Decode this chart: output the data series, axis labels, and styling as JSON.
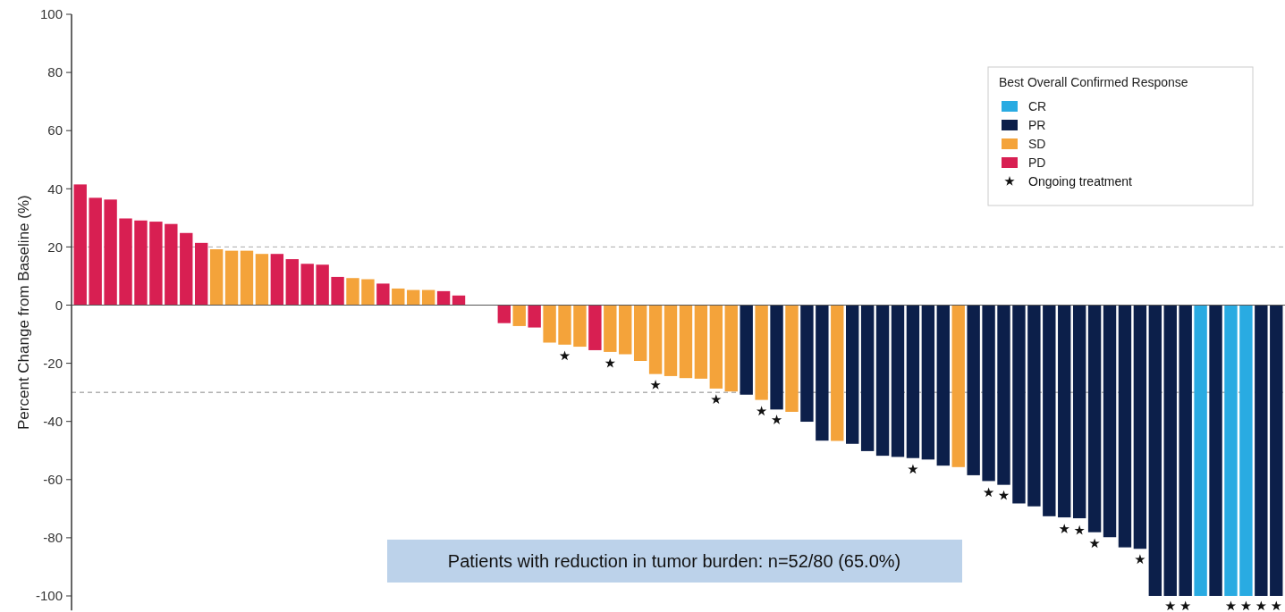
{
  "chart_data": {
    "type": "bar",
    "ylabel": "Percent Change from Baseline (%)",
    "legend_title": "Best Overall Confirmed Response",
    "legend": "top right",
    "grid": false,
    "tick_labels": "y",
    "categories": [
      null,
      null,
      null,
      null,
      null,
      null,
      null,
      null,
      null,
      null,
      null,
      null,
      null,
      null,
      null,
      null,
      null,
      null,
      null,
      null,
      null,
      null,
      null,
      null,
      null,
      null,
      null,
      null,
      null,
      null,
      null,
      null,
      null,
      null,
      null,
      null,
      null,
      null,
      null,
      null,
      null,
      null,
      null,
      null,
      null,
      null,
      null,
      null,
      null,
      null,
      null,
      null,
      null,
      null,
      null,
      null,
      null,
      null,
      null,
      null,
      null,
      null,
      null,
      null,
      null,
      null,
      null,
      null,
      null,
      null,
      null,
      null,
      null,
      null,
      null,
      null,
      null,
      null,
      null,
      null
    ],
    "ylim": [
      -105,
      100
    ],
    "yticks": [
      -100,
      -80,
      -60,
      -40,
      -20,
      0,
      20,
      40,
      60,
      80,
      100
    ],
    "series": [
      {
        "name": "CR",
        "color": "#29abe2",
        "values": [
          null,
          null,
          null,
          null,
          null,
          null,
          null,
          null,
          null,
          null,
          null,
          null,
          null,
          null,
          null,
          null,
          null,
          null,
          null,
          null,
          null,
          null,
          null,
          null,
          null,
          null,
          null,
          null,
          null,
          null,
          null,
          null,
          null,
          null,
          null,
          null,
          null,
          null,
          null,
          null,
          null,
          null,
          null,
          null,
          null,
          null,
          null,
          null,
          null,
          null,
          null,
          null,
          null,
          null,
          null,
          null,
          null,
          null,
          null,
          null,
          null,
          null,
          null,
          null,
          null,
          null,
          null,
          null,
          null,
          null,
          null,
          null,
          null,
          null,
          -100,
          null,
          -100,
          -100,
          null,
          null
        ]
      },
      {
        "name": "PR",
        "color": "#0c1f4a",
        "values": [
          null,
          null,
          null,
          null,
          null,
          null,
          null,
          null,
          null,
          null,
          null,
          null,
          null,
          null,
          null,
          null,
          null,
          null,
          null,
          null,
          null,
          null,
          null,
          null,
          null,
          null,
          null,
          null,
          null,
          null,
          null,
          null,
          null,
          null,
          null,
          null,
          null,
          null,
          null,
          null,
          null,
          null,
          null,
          null,
          -30.8,
          null,
          -35.9,
          null,
          -40.1,
          -46.6,
          null,
          -47.7,
          -50.2,
          -51.8,
          -52.2,
          -52.6,
          -53.1,
          -55.2,
          null,
          -58.5,
          -60.5,
          -61.8,
          -68.2,
          -69.2,
          -72.6,
          -73.0,
          -73.3,
          -78.1,
          -79.8,
          -83.3,
          -83.8,
          -100,
          -100,
          -100,
          null,
          -100,
          null,
          null,
          -100,
          -100
        ]
      },
      {
        "name": "SD",
        "color": "#f4a33a",
        "values": [
          null,
          null,
          null,
          null,
          null,
          null,
          null,
          null,
          null,
          19.2,
          18.7,
          18.7,
          17.6,
          null,
          null,
          null,
          null,
          null,
          9.3,
          8.9,
          null,
          5.7,
          5.2,
          5.2,
          null,
          null,
          0,
          0,
          null,
          -7.2,
          null,
          -12.9,
          -13.6,
          -14.3,
          null,
          -16.1,
          -16.9,
          -19.2,
          -23.7,
          -24.4,
          -25.1,
          -25.3,
          -28.7,
          -29.7,
          null,
          -32.6,
          null,
          -36.7,
          null,
          null,
          -46.7,
          null,
          null,
          null,
          null,
          null,
          null,
          null,
          -55.7,
          null,
          null,
          null,
          null,
          null,
          null,
          null,
          null,
          null,
          null,
          null,
          null,
          null,
          null,
          null,
          null,
          null,
          null,
          null,
          null,
          null
        ]
      },
      {
        "name": "PD",
        "color": "#d81f52",
        "values": [
          41.5,
          36.9,
          36.3,
          29.8,
          29.1,
          28.7,
          27.9,
          24.8,
          21.4,
          null,
          null,
          null,
          null,
          17.6,
          15.8,
          14.2,
          13.9,
          9.7,
          null,
          null,
          7.4,
          null,
          null,
          null,
          4.8,
          3.3,
          null,
          null,
          -6.2,
          null,
          -7.7,
          null,
          null,
          null,
          -15.5,
          null,
          null,
          null,
          null,
          null,
          null,
          null,
          null,
          null,
          null,
          null,
          null,
          null,
          null,
          null,
          null,
          null,
          null,
          null,
          null,
          null,
          null,
          null,
          null,
          null,
          null,
          null,
          null,
          null,
          null,
          null,
          null,
          null,
          null,
          null,
          null,
          null,
          null,
          null,
          null,
          null,
          null,
          null,
          null,
          null
        ]
      },
      {
        "name": "Ongoing treatment",
        "type": "scatter",
        "marker": "star",
        "color": "#111111",
        "values": [
          null,
          null,
          null,
          null,
          null,
          null,
          null,
          null,
          null,
          null,
          null,
          null,
          null,
          null,
          null,
          null,
          null,
          null,
          null,
          null,
          null,
          null,
          null,
          null,
          null,
          null,
          null,
          null,
          null,
          null,
          null,
          null,
          -17.5,
          null,
          null,
          -20,
          null,
          null,
          -27.5,
          null,
          null,
          null,
          -32.5,
          null,
          null,
          -36.5,
          -39.5,
          null,
          null,
          null,
          null,
          null,
          null,
          null,
          null,
          -56.5,
          null,
          null,
          null,
          null,
          -64.5,
          -65.5,
          null,
          null,
          null,
          -77,
          -77.5,
          -82,
          null,
          null,
          -87.5,
          null,
          -103.5,
          -103.5,
          null,
          null,
          -103.5,
          -103.5,
          -103.5,
          -103.5
        ]
      }
    ],
    "ref_lines": [
      {
        "axis": "y",
        "value": 20,
        "color": "#aaaaaa",
        "line_style": "dashed"
      },
      {
        "axis": "y",
        "value": -30,
        "color": "#888888",
        "line_style": "dashed"
      }
    ],
    "annotations": [
      "Patients with reduction in tumor burden: n=52/80 (65.0%)"
    ]
  }
}
